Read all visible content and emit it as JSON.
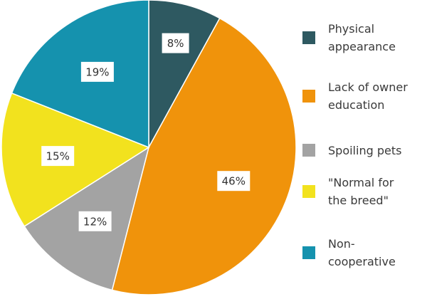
{
  "chart_data": {
    "type": "pie",
    "title": "",
    "start_angle_deg": 0,
    "direction": "clockwise",
    "legend_position": "right",
    "slices": [
      {
        "name": "Physical appearance",
        "legend_lines": [
          "Physical",
          "appearance"
        ],
        "value": 8,
        "label": "8%",
        "color": "#2e5961"
      },
      {
        "name": "Lack of owner education",
        "legend_lines": [
          "Lack of owner",
          "education"
        ],
        "value": 46,
        "label": "46%",
        "color": "#f0930b"
      },
      {
        "name": "Spoiling pets",
        "legend_lines": [
          "Spoiling pets"
        ],
        "value": 12,
        "label": "12%",
        "color": "#a3a3a3"
      },
      {
        "name": "\"Normal for the breed\"",
        "legend_lines": [
          "\"Normal for",
          "the breed\""
        ],
        "value": 15,
        "label": "15%",
        "color": "#f2e21e"
      },
      {
        "name": "Non-cooperative",
        "legend_lines": [
          "Non-",
          "cooperative"
        ],
        "value": 19,
        "label": "19%",
        "color": "#1592ae"
      }
    ]
  }
}
